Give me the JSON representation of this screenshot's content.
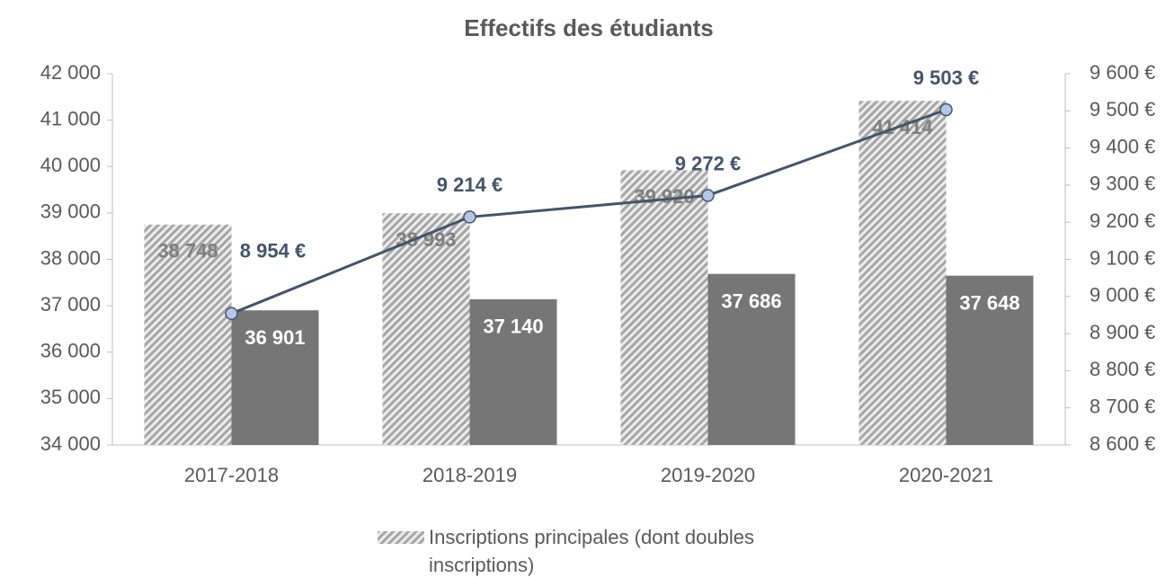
{
  "chart_data": {
    "type": "bar-line",
    "title": "Effectifs des étudiants",
    "categories": [
      "2017-2018",
      "2018-2019",
      "2019-2020",
      "2020-2021"
    ],
    "series": [
      {
        "name": "Inscriptions principales (dont doubles inscriptions)",
        "type": "bar",
        "color": "#a6a6a6",
        "pattern": "hatch",
        "values": [
          38748,
          38993,
          39920,
          41414
        ],
        "value_labels": [
          "38 748",
          "38 993",
          "39 920",
          "41 414"
        ]
      },
      {
        "type": "bar",
        "color": "#767676",
        "values": [
          36901,
          37140,
          37686,
          37648
        ],
        "value_labels": [
          "36 901",
          "37 140",
          "37 686",
          "37 648"
        ]
      },
      {
        "type": "line",
        "axis": "y2",
        "color": "#44546a",
        "marker_color": "#b4c7e7",
        "values": [
          8954,
          9214,
          9272,
          9503
        ],
        "value_labels": [
          "8 954 €",
          "9 214 €",
          "9 272 €",
          "9 503 €"
        ]
      }
    ],
    "ylim": [
      34000,
      42000
    ],
    "yticks": [
      {
        "value": 34000,
        "label": "34 000"
      },
      {
        "value": 35000,
        "label": "35 000"
      },
      {
        "value": 36000,
        "label": "36 000"
      },
      {
        "value": 37000,
        "label": "37 000"
      },
      {
        "value": 38000,
        "label": "38 000"
      },
      {
        "value": 39000,
        "label": "39 000"
      },
      {
        "value": 40000,
        "label": "40 000"
      },
      {
        "value": 41000,
        "label": "41 000"
      },
      {
        "value": 42000,
        "label": "42 000"
      }
    ],
    "y2lim": [
      8600,
      9600
    ],
    "y2ticks": [
      {
        "value": 8600,
        "label": "8 600 €"
      },
      {
        "value": 8700,
        "label": "8 700 €"
      },
      {
        "value": 8800,
        "label": "8 800 €"
      },
      {
        "value": 8900,
        "label": "8 900 €"
      },
      {
        "value": 9000,
        "label": "9 000 €"
      },
      {
        "value": 9100,
        "label": "9 100 €"
      },
      {
        "value": 9200,
        "label": "9 200 €"
      },
      {
        "value": 9300,
        "label": "9 300 €"
      },
      {
        "value": 9400,
        "label": "9 400 €"
      },
      {
        "value": 9500,
        "label": "9 500 €"
      },
      {
        "value": 9600,
        "label": "9 600 €"
      }
    ],
    "legend": "bottom"
  }
}
